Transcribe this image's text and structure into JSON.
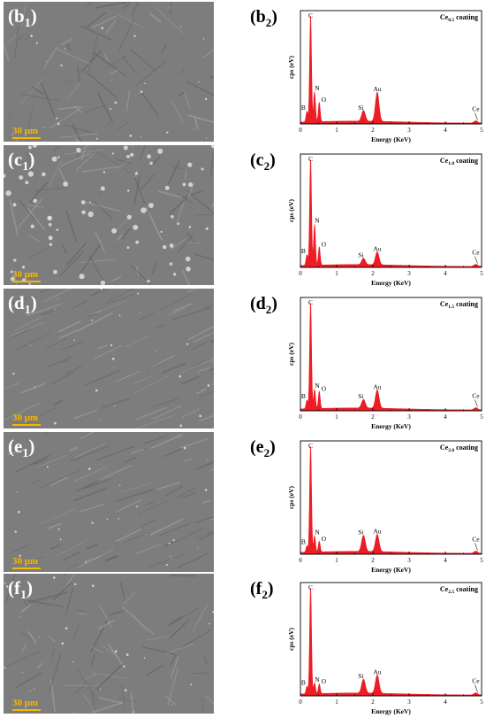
{
  "panels": [
    {
      "sem_label": "b",
      "sem_sub": "1",
      "scale_label": "30 μm",
      "eds_label": "b",
      "eds_sub": "2",
      "chart_data": {
        "type": "line",
        "title": "Ce0.5 coating",
        "title_main": "Ce",
        "title_sub": "0.5",
        "title_rest": " coating",
        "xlabel": "Energy (KeV)",
        "ylabel": "cps (eV)",
        "xlim": [
          0,
          5
        ],
        "ylim": [
          0,
          1
        ],
        "xticks": [
          0,
          1,
          2,
          3,
          4,
          5
        ],
        "peaks": [
          {
            "el": "B",
            "x": 0.18,
            "y": 0.1
          },
          {
            "el": "C",
            "x": 0.28,
            "y": 1.0
          },
          {
            "el": "N",
            "x": 0.39,
            "y": 0.28
          },
          {
            "el": "O",
            "x": 0.52,
            "y": 0.18
          },
          {
            "el": "Si",
            "x": 1.74,
            "y": 0.1
          },
          {
            "el": "Au",
            "x": 2.12,
            "y": 0.27
          },
          {
            "el": "Ce",
            "x": 4.84,
            "y": 0.02
          }
        ]
      }
    },
    {
      "sem_label": "c",
      "sem_sub": "1",
      "scale_label": "30 μm",
      "eds_label": "c",
      "eds_sub": "2",
      "chart_data": {
        "type": "line",
        "title": "Ce1.0 coating",
        "title_main": "Ce",
        "title_sub": "1.0",
        "title_rest": " coating",
        "xlabel": "Energy (KeV)",
        "ylabel": "cps (eV)",
        "xlim": [
          0,
          5
        ],
        "ylim": [
          0,
          1
        ],
        "xticks": [
          0,
          1,
          2,
          3,
          4,
          5
        ],
        "peaks": [
          {
            "el": "B",
            "x": 0.18,
            "y": 0.1
          },
          {
            "el": "C",
            "x": 0.28,
            "y": 1.0
          },
          {
            "el": "N",
            "x": 0.39,
            "y": 0.38
          },
          {
            "el": "O",
            "x": 0.52,
            "y": 0.17
          },
          {
            "el": "Si",
            "x": 1.74,
            "y": 0.06
          },
          {
            "el": "Au",
            "x": 2.12,
            "y": 0.12
          },
          {
            "el": "Ce",
            "x": 4.84,
            "y": 0.02
          }
        ]
      }
    },
    {
      "sem_label": "d",
      "sem_sub": "1",
      "scale_label": "30 μm",
      "eds_label": "d",
      "eds_sub": "2",
      "chart_data": {
        "type": "line",
        "title": "Ce1.5 coating",
        "title_main": "Ce",
        "title_sub": "1.5",
        "title_rest": " coating",
        "xlabel": "Energy (KeV)",
        "ylabel": "cps (eV)",
        "xlim": [
          0,
          5
        ],
        "ylim": [
          0,
          1
        ],
        "xticks": [
          0,
          1,
          2,
          3,
          4,
          5
        ],
        "peaks": [
          {
            "el": "B",
            "x": 0.18,
            "y": 0.08
          },
          {
            "el": "C",
            "x": 0.28,
            "y": 1.0
          },
          {
            "el": "N",
            "x": 0.39,
            "y": 0.18
          },
          {
            "el": "O",
            "x": 0.52,
            "y": 0.16
          },
          {
            "el": "Si",
            "x": 1.74,
            "y": 0.08
          },
          {
            "el": "Au",
            "x": 2.12,
            "y": 0.17
          },
          {
            "el": "Ce",
            "x": 4.84,
            "y": 0.02
          }
        ]
      }
    },
    {
      "sem_label": "e",
      "sem_sub": "1",
      "scale_label": "30 μm",
      "eds_label": "e",
      "eds_sub": "2",
      "chart_data": {
        "type": "line",
        "title": "Ce2.0 coating",
        "title_main": "Ce",
        "title_sub": "2.0",
        "title_rest": " coating",
        "xlabel": "Energy (KeV)",
        "ylabel": "cps (eV)",
        "xlim": [
          0,
          5
        ],
        "ylim": [
          0,
          1
        ],
        "xticks": [
          0,
          1,
          2,
          3,
          4,
          5
        ],
        "peaks": [
          {
            "el": "B",
            "x": 0.18,
            "y": 0.06
          },
          {
            "el": "C",
            "x": 0.28,
            "y": 1.0
          },
          {
            "el": "N",
            "x": 0.39,
            "y": 0.15
          },
          {
            "el": "O",
            "x": 0.52,
            "y": 0.1
          },
          {
            "el": "Si",
            "x": 1.74,
            "y": 0.15
          },
          {
            "el": "Au",
            "x": 2.12,
            "y": 0.16
          },
          {
            "el": "Ce",
            "x": 4.84,
            "y": 0.02
          }
        ]
      }
    },
    {
      "sem_label": "f",
      "sem_sub": "1",
      "scale_label": "30 μm",
      "eds_label": "f",
      "eds_sub": "2",
      "chart_data": {
        "type": "line",
        "title": "Ce2.5 coating",
        "title_main": "Ce",
        "title_sub": "2.5",
        "title_rest": " coating",
        "xlabel": "Energy (KeV)",
        "ylabel": "cps (eV)",
        "xlim": [
          0,
          5
        ],
        "ylim": [
          0,
          1
        ],
        "xticks": [
          0,
          1,
          2,
          3,
          4,
          5
        ],
        "peaks": [
          {
            "el": "B",
            "x": 0.18,
            "y": 0.07
          },
          {
            "el": "C",
            "x": 0.28,
            "y": 1.0
          },
          {
            "el": "N",
            "x": 0.39,
            "y": 0.1
          },
          {
            "el": "O",
            "x": 0.52,
            "y": 0.09
          },
          {
            "el": "Si",
            "x": 1.74,
            "y": 0.13
          },
          {
            "el": "Au",
            "x": 2.12,
            "y": 0.17
          },
          {
            "el": "Ce",
            "x": 4.84,
            "y": 0.02
          }
        ]
      }
    }
  ],
  "colors": {
    "spectrum": "#ee1c25",
    "scale_bar": "#f5b800",
    "sem_bg": "#7d7d7d"
  }
}
